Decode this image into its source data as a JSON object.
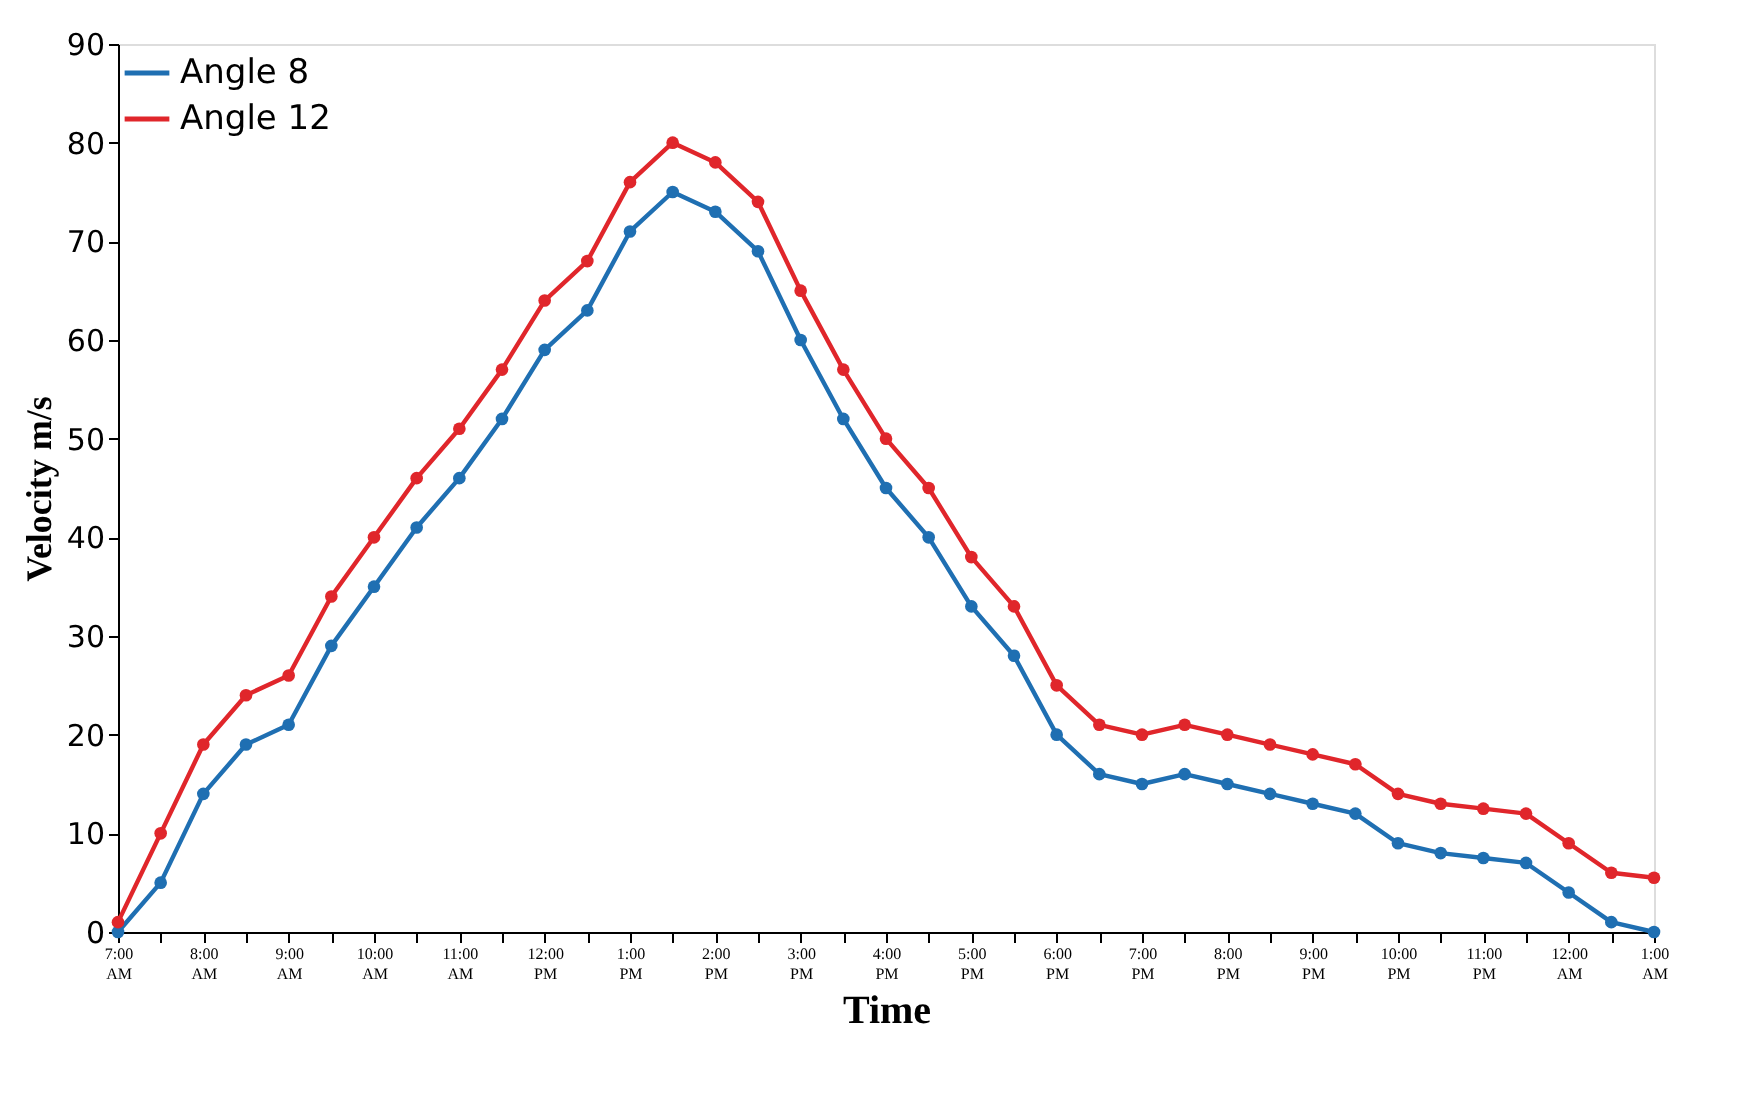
{
  "chart_data": {
    "type": "line",
    "xlabel": "Time",
    "ylabel": "Velocity m/s",
    "categories": [
      "7:00 AM",
      null,
      "8:00 AM",
      null,
      "9:00 AM",
      null,
      "10:00 AM",
      null,
      "11:00 AM",
      null,
      "12:00 PM",
      null,
      "1:00 PM",
      null,
      "2:00 PM",
      null,
      "3:00 PM",
      null,
      "4:00 PM",
      null,
      "5:00 PM",
      null,
      "6:00 PM",
      null,
      "7:00 PM",
      null,
      "8:00 PM",
      null,
      "9:00 PM",
      null,
      "10:00 PM",
      null,
      "11:00 PM",
      null,
      "12:00 AM",
      null,
      "1:00 AM"
    ],
    "ylim": [
      0,
      90
    ],
    "yticks": [
      0,
      10,
      20,
      30,
      40,
      50,
      60,
      70,
      80,
      90
    ],
    "grid": false,
    "legend": "top left",
    "marker": "circle",
    "line_style": "solid",
    "series": [
      {
        "name": "Angle 8",
        "color": "#1f6fb2",
        "values": [
          0,
          5,
          14,
          19,
          21,
          29,
          35,
          41,
          46,
          52,
          59,
          63,
          71,
          75,
          73,
          69,
          60,
          52,
          45,
          40,
          33,
          28,
          20,
          16,
          15,
          16,
          15,
          14,
          13,
          12,
          9,
          8,
          7.5,
          7,
          4,
          1,
          0
        ]
      },
      {
        "name": "Angle 12",
        "color": "#e0262b",
        "values": [
          1,
          10,
          19,
          24,
          26,
          34,
          40,
          46,
          51,
          57,
          64,
          68,
          76,
          80,
          78,
          74,
          65,
          57,
          50,
          45,
          38,
          33,
          25,
          21,
          20,
          21,
          20,
          19,
          18,
          17,
          14,
          13,
          12.5,
          12,
          9,
          6,
          5.5
        ]
      }
    ]
  }
}
